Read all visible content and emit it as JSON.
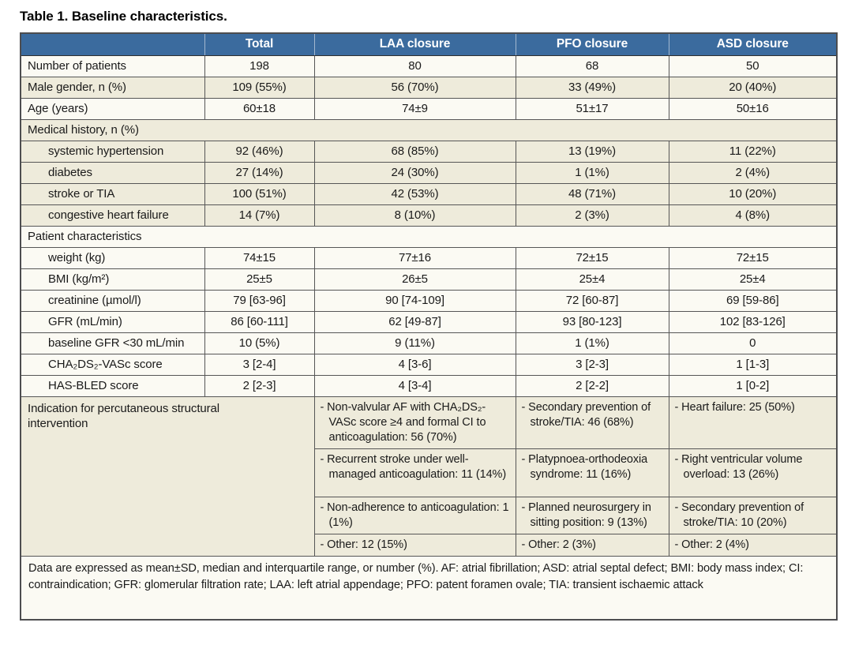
{
  "title": "Table 1. Baseline characteristics.",
  "columns": {
    "c0": "",
    "c1": "Total",
    "c2": "LAA closure",
    "c3": "PFO closure",
    "c4": "ASD closure"
  },
  "rows": {
    "patients": {
      "label": "Number of patients",
      "v": [
        "198",
        "80",
        "68",
        "50"
      ]
    },
    "gender": {
      "label": "Male gender, n (%)",
      "v": [
        "109 (55%)",
        "56 (70%)",
        "33 (49%)",
        "20 (40%)"
      ]
    },
    "age": {
      "label": "Age (years)",
      "v": [
        "60±18",
        "74±9",
        "51±17",
        "50±16"
      ]
    },
    "medical_history_header": {
      "label": "Medical history, n (%)"
    },
    "hypertension": {
      "label": "systemic hypertension",
      "v": [
        "92 (46%)",
        "68 (85%)",
        "13 (19%)",
        "11 (22%)"
      ]
    },
    "diabetes": {
      "label": "diabetes",
      "v": [
        "27 (14%)",
        "24 (30%)",
        "1 (1%)",
        "2 (4%)"
      ]
    },
    "stroke": {
      "label": "stroke or TIA",
      "v": [
        "100 (51%)",
        "42 (53%)",
        "48 (71%)",
        "10 (20%)"
      ]
    },
    "chf": {
      "label": "congestive heart failure",
      "v": [
        "14 (7%)",
        "8 (10%)",
        "2 (3%)",
        "4 (8%)"
      ]
    },
    "patient_char_header": {
      "label": "Patient characteristics"
    },
    "weight": {
      "label": "weight (kg)",
      "v": [
        "74±15",
        "77±16",
        "72±15",
        "72±15"
      ]
    },
    "bmi": {
      "label": "BMI (kg/m²)",
      "v": [
        "25±5",
        "26±5",
        "25±4",
        "25±4"
      ]
    },
    "creatinine": {
      "label": "creatinine (µmol/l)",
      "v": [
        "79 [63-96]",
        "90 [74-109]",
        "72 [60-87]",
        "69 [59-86]"
      ]
    },
    "gfr": {
      "label": "GFR (mL/min)",
      "v": [
        "86 [60-111]",
        "62 [49-87]",
        "93 [80-123]",
        "102 [83-126]"
      ]
    },
    "gfr_low": {
      "label": "baseline GFR <30 mL/min",
      "v": [
        "10 (5%)",
        "9 (11%)",
        "1 (1%)",
        "0"
      ]
    },
    "chads": {
      "label": "CHA₂DS₂-VASc score",
      "v": [
        "3 [2-4]",
        "4 [3-6]",
        "3 [2-3]",
        "1 [1-3]"
      ]
    },
    "hasbled": {
      "label": "HAS-BLED score",
      "v": [
        "2 [2-3]",
        "4 [3-4]",
        "2 [2-2]",
        "1 [0-2]"
      ]
    }
  },
  "indication": {
    "label": "Indication for percutaneous structural intervention",
    "laa": [
      "- Non-valvular AF with CHA₂DS₂-VASc score ≥4 and formal CI to anticoagulation: 56 (70%)",
      "- Recurrent stroke under well-managed anticoagulation: 11 (14%)",
      "- Non-adherence to anticoagulation: 1 (1%)",
      "- Other: 12 (15%)"
    ],
    "pfo": [
      "- Secondary prevention of stroke/TIA: 46 (68%)",
      "- Platypnoea-orthodeoxia syndrome: 11 (16%)",
      "- Planned neurosurgery in sitting position: 9 (13%)",
      "- Other: 2 (3%)"
    ],
    "asd": [
      "- Heart failure: 25 (50%)",
      "- Right ventricular volume overload: 13 (26%)",
      "- Secondary prevention of stroke/TIA: 10 (20%)",
      "- Other: 2 (4%)"
    ]
  },
  "footnote": "Data are expressed as mean±SD, median and interquartile range, or number (%). AF: atrial fibrillation; ASD: atrial septal defect; BMI: body mass index; CI: contraindication; GFR: glomerular filtration rate; LAA: left atrial appendage; PFO: patent foramen ovale; TIA: transient ischaemic attack",
  "colors": {
    "header_bg": "#3b6b9e",
    "row_shade": "#eeebdb",
    "row_plain": "#fbfaf3"
  }
}
